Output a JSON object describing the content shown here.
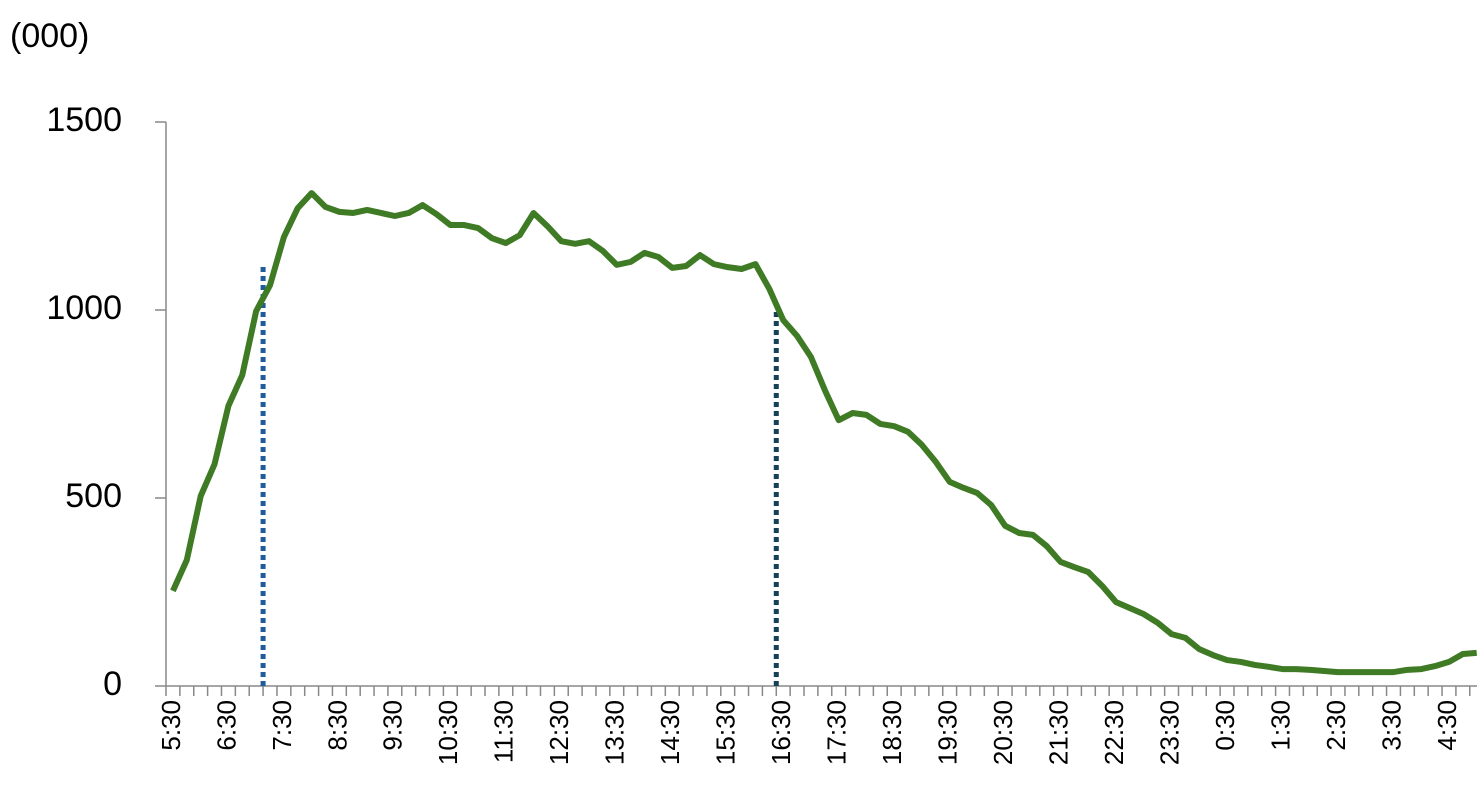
{
  "chart_data": {
    "type": "line",
    "y_axis_label": "(000)",
    "categories": [
      "5:30",
      null,
      null,
      null,
      "6:30",
      null,
      null,
      null,
      "7:30",
      null,
      null,
      null,
      "8:30",
      null,
      null,
      null,
      "9:30",
      null,
      null,
      null,
      "10:30",
      null,
      null,
      null,
      "11:30",
      null,
      null,
      null,
      "12:30",
      null,
      null,
      null,
      "13:30",
      null,
      null,
      null,
      "14:30",
      null,
      null,
      null,
      "15:30",
      null,
      null,
      null,
      "16:30",
      null,
      null,
      null,
      "17:30",
      null,
      null,
      null,
      "18:30",
      null,
      null,
      null,
      "19:30",
      null,
      null,
      null,
      "20:30",
      null,
      null,
      null,
      "21:30",
      null,
      null,
      null,
      "22:30",
      null,
      null,
      null,
      "23:30",
      null,
      null,
      null,
      "0:30",
      null,
      null,
      null,
      "1:30",
      null,
      null,
      null,
      "2:30",
      null,
      null,
      null,
      "3:30",
      null,
      null,
      null,
      "4:30",
      null,
      null
    ],
    "series": [
      {
        "color": "#3f7a24",
        "values": [
          253,
          335,
          505,
          590,
          745,
          827,
          997,
          1066,
          1194,
          1271,
          1311,
          1274,
          1261,
          1258,
          1266,
          1258,
          1250,
          1258,
          1279,
          1255,
          1226,
          1226,
          1218,
          1191,
          1178,
          1199,
          1258,
          1223,
          1183,
          1176,
          1183,
          1157,
          1120,
          1128,
          1152,
          1141,
          1112,
          1117,
          1146,
          1122,
          1114,
          1109,
          1122,
          1056,
          973,
          931,
          875,
          787,
          707,
          726,
          721,
          697,
          691,
          676,
          641,
          596,
          543,
          527,
          513,
          481,
          426,
          407,
          402,
          372,
          330,
          316,
          303,
          266,
          223,
          207,
          191,
          168,
          138,
          128,
          98,
          82,
          69,
          64,
          56,
          51,
          45,
          45,
          43,
          40,
          37,
          37,
          37,
          37,
          37,
          43,
          45,
          53,
          64,
          85,
          88
        ]
      }
    ],
    "reference_lines": [
      {
        "at": 6.5,
        "height": 1120,
        "color": "#1f5c99"
      },
      {
        "at": 43.5,
        "height": 1000,
        "color": "#17405a"
      }
    ],
    "ylim": [
      0,
      1500
    ],
    "yticks": [
      0,
      500,
      1000,
      1500
    ]
  }
}
